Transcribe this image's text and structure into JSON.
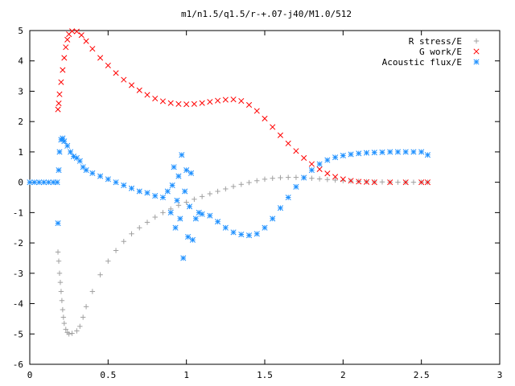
{
  "chart_data": {
    "type": "scatter",
    "title": "m1/n1.5/q1.5/r-+.07-j40/M1.0/512",
    "xlabel": "",
    "ylabel": "",
    "xlim": [
      0,
      3
    ],
    "ylim": [
      -6,
      5
    ],
    "x_ticks": [
      "0",
      "0.5",
      "1",
      "1.5",
      "2",
      "2.5",
      "3"
    ],
    "y_ticks": [
      "5",
      "4",
      "3",
      "2",
      "1",
      "0",
      "-1",
      "-2",
      "-3",
      "-4",
      "-5",
      "-6"
    ],
    "grid": false,
    "legend_position": "top-right",
    "series": [
      {
        "name": "R stress/E",
        "marker": "plus",
        "color": "#a0a0a0",
        "points": [
          [
            0.18,
            -2.3
          ],
          [
            0.185,
            -2.6
          ],
          [
            0.19,
            -3.0
          ],
          [
            0.195,
            -3.3
          ],
          [
            0.2,
            -3.6
          ],
          [
            0.205,
            -3.9
          ],
          [
            0.21,
            -4.2
          ],
          [
            0.215,
            -4.45
          ],
          [
            0.22,
            -4.65
          ],
          [
            0.23,
            -4.85
          ],
          [
            0.24,
            -4.95
          ],
          [
            0.25,
            -5.0
          ],
          [
            0.27,
            -4.98
          ],
          [
            0.3,
            -4.9
          ],
          [
            0.32,
            -4.75
          ],
          [
            0.34,
            -4.45
          ],
          [
            0.36,
            -4.1
          ],
          [
            0.4,
            -3.6
          ],
          [
            0.45,
            -3.05
          ],
          [
            0.5,
            -2.6
          ],
          [
            0.55,
            -2.25
          ],
          [
            0.6,
            -1.95
          ],
          [
            0.65,
            -1.7
          ],
          [
            0.7,
            -1.5
          ],
          [
            0.75,
            -1.32
          ],
          [
            0.8,
            -1.15
          ],
          [
            0.85,
            -1.0
          ],
          [
            0.9,
            -0.88
          ],
          [
            0.95,
            -0.76
          ],
          [
            1.0,
            -0.66
          ],
          [
            1.05,
            -0.56
          ],
          [
            1.1,
            -0.47
          ],
          [
            1.15,
            -0.38
          ],
          [
            1.2,
            -0.3
          ],
          [
            1.25,
            -0.22
          ],
          [
            1.3,
            -0.14
          ],
          [
            1.35,
            -0.07
          ],
          [
            1.4,
            -0.01
          ],
          [
            1.45,
            0.05
          ],
          [
            1.5,
            0.1
          ],
          [
            1.55,
            0.13
          ],
          [
            1.6,
            0.15
          ],
          [
            1.65,
            0.16
          ],
          [
            1.7,
            0.16
          ],
          [
            1.75,
            0.15
          ],
          [
            1.8,
            0.13
          ],
          [
            1.85,
            0.11
          ],
          [
            1.9,
            0.09
          ],
          [
            1.95,
            0.07
          ],
          [
            2.0,
            0.05
          ],
          [
            2.05,
            0.04
          ],
          [
            2.1,
            0.03
          ],
          [
            2.15,
            0.02
          ],
          [
            2.2,
            0.01
          ],
          [
            2.25,
            0.01
          ],
          [
            2.3,
            0.0
          ],
          [
            2.35,
            0.0
          ],
          [
            2.4,
            0.0
          ],
          [
            2.45,
            0.0
          ],
          [
            2.5,
            0.0
          ],
          [
            2.54,
            0.0
          ]
        ]
      },
      {
        "name": "G work/E",
        "marker": "cross",
        "color": "#ff0000",
        "points": [
          [
            0.18,
            2.4
          ],
          [
            0.185,
            2.6
          ],
          [
            0.19,
            2.9
          ],
          [
            0.2,
            3.3
          ],
          [
            0.21,
            3.7
          ],
          [
            0.22,
            4.1
          ],
          [
            0.23,
            4.45
          ],
          [
            0.24,
            4.7
          ],
          [
            0.25,
            4.88
          ],
          [
            0.27,
            4.98
          ],
          [
            0.3,
            4.97
          ],
          [
            0.33,
            4.85
          ],
          [
            0.36,
            4.65
          ],
          [
            0.4,
            4.4
          ],
          [
            0.45,
            4.1
          ],
          [
            0.5,
            3.85
          ],
          [
            0.55,
            3.6
          ],
          [
            0.6,
            3.38
          ],
          [
            0.65,
            3.2
          ],
          [
            0.7,
            3.03
          ],
          [
            0.75,
            2.88
          ],
          [
            0.8,
            2.76
          ],
          [
            0.85,
            2.67
          ],
          [
            0.9,
            2.61
          ],
          [
            0.95,
            2.58
          ],
          [
            1.0,
            2.57
          ],
          [
            1.05,
            2.58
          ],
          [
            1.1,
            2.61
          ],
          [
            1.15,
            2.65
          ],
          [
            1.2,
            2.69
          ],
          [
            1.25,
            2.72
          ],
          [
            1.3,
            2.73
          ],
          [
            1.35,
            2.68
          ],
          [
            1.4,
            2.55
          ],
          [
            1.45,
            2.35
          ],
          [
            1.5,
            2.1
          ],
          [
            1.55,
            1.82
          ],
          [
            1.6,
            1.55
          ],
          [
            1.65,
            1.28
          ],
          [
            1.7,
            1.03
          ],
          [
            1.75,
            0.8
          ],
          [
            1.8,
            0.6
          ],
          [
            1.85,
            0.43
          ],
          [
            1.9,
            0.29
          ],
          [
            1.95,
            0.18
          ],
          [
            2.0,
            0.1
          ],
          [
            2.05,
            0.05
          ],
          [
            2.1,
            0.02
          ],
          [
            2.15,
            0.01
          ],
          [
            2.2,
            0.0
          ],
          [
            2.3,
            0.0
          ],
          [
            2.4,
            0.0
          ],
          [
            2.5,
            0.0
          ],
          [
            2.54,
            0.0
          ]
        ]
      },
      {
        "name": "Acoustic flux/E",
        "marker": "star",
        "color": "#1e90ff",
        "points": [
          [
            0.0,
            0.0
          ],
          [
            0.03,
            0.0
          ],
          [
            0.06,
            0.0
          ],
          [
            0.09,
            0.0
          ],
          [
            0.12,
            0.0
          ],
          [
            0.15,
            0.0
          ],
          [
            0.175,
            0.0
          ],
          [
            0.18,
            -1.35
          ],
          [
            0.185,
            0.4
          ],
          [
            0.19,
            1.0
          ],
          [
            0.2,
            1.4
          ],
          [
            0.21,
            1.45
          ],
          [
            0.22,
            1.35
          ],
          [
            0.24,
            1.2
          ],
          [
            0.26,
            1.0
          ],
          [
            0.28,
            0.85
          ],
          [
            0.3,
            0.8
          ],
          [
            0.32,
            0.7
          ],
          [
            0.34,
            0.5
          ],
          [
            0.36,
            0.4
          ],
          [
            0.4,
            0.3
          ],
          [
            0.45,
            0.2
          ],
          [
            0.5,
            0.1
          ],
          [
            0.55,
            0.0
          ],
          [
            0.6,
            -0.1
          ],
          [
            0.65,
            -0.2
          ],
          [
            0.7,
            -0.3
          ],
          [
            0.75,
            -0.35
          ],
          [
            0.8,
            -0.45
          ],
          [
            0.85,
            -0.5
          ],
          [
            0.88,
            -0.3
          ],
          [
            0.9,
            -1.0
          ],
          [
            0.91,
            -0.1
          ],
          [
            0.92,
            0.5
          ],
          [
            0.93,
            -1.5
          ],
          [
            0.94,
            -0.6
          ],
          [
            0.95,
            0.2
          ],
          [
            0.96,
            -1.2
          ],
          [
            0.97,
            0.9
          ],
          [
            0.98,
            -2.5
          ],
          [
            0.99,
            -0.3
          ],
          [
            1.0,
            0.4
          ],
          [
            1.01,
            -1.8
          ],
          [
            1.02,
            -0.8
          ],
          [
            1.03,
            0.3
          ],
          [
            1.04,
            -1.9
          ],
          [
            1.06,
            -1.2
          ],
          [
            1.08,
            -1.0
          ],
          [
            1.1,
            -1.05
          ],
          [
            1.15,
            -1.1
          ],
          [
            1.2,
            -1.3
          ],
          [
            1.25,
            -1.5
          ],
          [
            1.3,
            -1.65
          ],
          [
            1.35,
            -1.72
          ],
          [
            1.4,
            -1.75
          ],
          [
            1.45,
            -1.7
          ],
          [
            1.5,
            -1.5
          ],
          [
            1.55,
            -1.2
          ],
          [
            1.6,
            -0.85
          ],
          [
            1.65,
            -0.5
          ],
          [
            1.7,
            -0.15
          ],
          [
            1.75,
            0.15
          ],
          [
            1.8,
            0.4
          ],
          [
            1.85,
            0.6
          ],
          [
            1.9,
            0.73
          ],
          [
            1.95,
            0.82
          ],
          [
            2.0,
            0.88
          ],
          [
            2.05,
            0.92
          ],
          [
            2.1,
            0.95
          ],
          [
            2.15,
            0.97
          ],
          [
            2.2,
            0.98
          ],
          [
            2.25,
            0.99
          ],
          [
            2.3,
            1.0
          ],
          [
            2.35,
            1.0
          ],
          [
            2.4,
            1.0
          ],
          [
            2.45,
            1.0
          ],
          [
            2.5,
            1.0
          ],
          [
            2.54,
            0.9
          ]
        ]
      }
    ]
  }
}
